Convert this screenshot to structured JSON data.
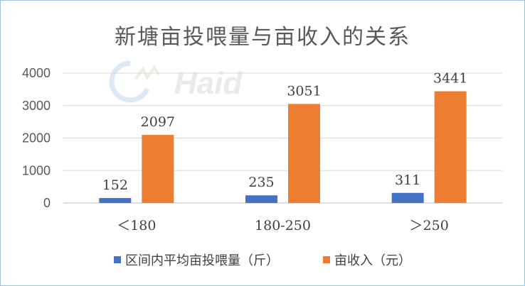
{
  "chart_data": {
    "type": "bar",
    "title": "新塘亩投喂量与亩收入的关系",
    "categories": [
      "＜180",
      "180-250",
      "＞250"
    ],
    "series": [
      {
        "name": "区间内平均亩投喂量（斤）",
        "values": [
          152,
          235,
          311
        ],
        "color": "#4472c4"
      },
      {
        "name": "亩收入（元）",
        "values": [
          2097,
          3051,
          3441
        ],
        "color": "#ed7d31"
      }
    ],
    "ylim": [
      0,
      4000
    ],
    "yticks": [
      0,
      1000,
      2000,
      3000,
      4000
    ],
    "grid": true,
    "legend_position": "bottom"
  },
  "watermark": {
    "text": "Haid",
    "logo": "haid-logo-icon"
  }
}
